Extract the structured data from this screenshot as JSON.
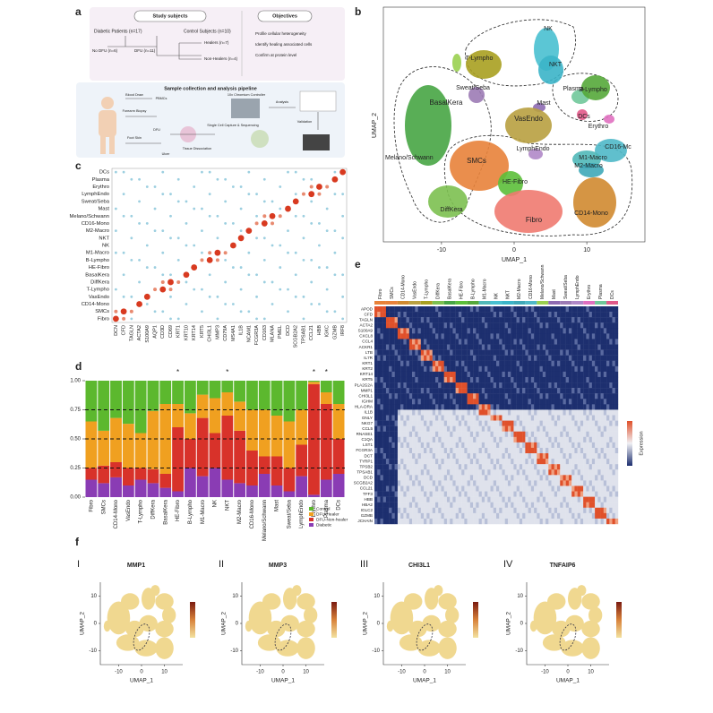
{
  "panel_labels": [
    "a",
    "b",
    "c",
    "d",
    "e",
    "f"
  ],
  "panel_a": {
    "study_subjects": "Study subjects",
    "diabetic": "Diabetic Patients (n=17)",
    "control": "Control Subjects (n=10)",
    "no_dfu": "No DFU (n=6)",
    "dfu": "DFU (n=11)",
    "healers": "Healers (n=7)",
    "non_healers": "Non-Healers (n=4)",
    "objectives": "Objectives",
    "objective_items": [
      "Profile cellular heterogeneity",
      "Identify healing associated cells",
      "Confirm at protein level"
    ],
    "pipeline": "Sample collection and analysis pipeline",
    "pipeline_labels": [
      "Blood Draw",
      "PBMCs",
      "Forearm Biopsy",
      "Foot Skin",
      "Ulcer",
      "DFU",
      "Tissue Dissociation",
      "10x Chromium Controller",
      "Single Cell Capture & Sequencing",
      "Analysis",
      "Validation"
    ]
  },
  "chart_data": [
    {
      "type": "umap",
      "xlabel": "UMAP_1",
      "ylabel": "UMAP_2",
      "xlim": [
        -18,
        18
      ],
      "xticks": [
        -10,
        0,
        10
      ],
      "clusters": [
        "NK",
        "T-Lympho",
        "NKT",
        "Plasma",
        "B-Lympho",
        "Sweat/Seba",
        "BasalKera",
        "Mast",
        "DCs",
        "Erythro",
        "VasEndo",
        "LymphEndo",
        "CD16-Mc",
        "M1-Macro",
        "M2-Macro",
        "Melano/Schwann",
        "SMCs",
        "HE-Fibro",
        "DiffKera",
        "Fibro",
        "CD14-Mono"
      ]
    },
    {
      "type": "dotplot",
      "categories": [
        "DCs",
        "Plasma",
        "Erythro",
        "LymphEndo",
        "Sweat/Seba",
        "Mast",
        "Melano/Schwann",
        "CD16-Mono",
        "M2-Macro",
        "NKT",
        "NK",
        "M1-Macro",
        "B-Lympho",
        "HE-Fibro",
        "BasalKera",
        "DiffKera",
        "T-Lympho",
        "VasEndo",
        "CD14-Mono",
        "SMCs",
        "Fibro"
      ],
      "genes": [
        "DCN",
        "CFD",
        "TAGLN",
        "ACTA2",
        "S100A9",
        "AQP1",
        "CD3D",
        "CD69",
        "KRT1",
        "KRT10",
        "KRT14",
        "KRT5",
        "CHI3L1",
        "MMP3",
        "CD79A",
        "MS4A1",
        "IL1B",
        "NCAM1",
        "FCGR3A",
        "CD163",
        "MLANA",
        "PMEL",
        "DCD",
        "SCGB2A2",
        "TPSAB1",
        "CCL21",
        "HBB",
        "IGKC",
        "GZMB",
        "IRF8"
      ]
    },
    {
      "type": "bar",
      "stacked": true,
      "categories": [
        "Fibro",
        "SMCs",
        "CD14-Mono",
        "VasEndo",
        "T-Lympho",
        "DiffKera",
        "BasalKera",
        "HE-Fibro",
        "B-Lympho",
        "M1-Macro",
        "NK",
        "NKT",
        "M2-Macro",
        "CD16-Mono",
        "Melano/Schwann",
        "Mast",
        "Sweat/Seba",
        "LymphEndo",
        "Erythro",
        "Plasma",
        "DCs"
      ],
      "series": [
        {
          "name": "Control",
          "color": "#5cb82e",
          "values": [
            0.35,
            0.43,
            0.32,
            0.37,
            0.45,
            0.26,
            0.2,
            0.2,
            0.28,
            0.12,
            0.15,
            0.1,
            0.18,
            0.25,
            0.25,
            0.3,
            0.35,
            0.25,
            0.01,
            0.1,
            0.2
          ]
        },
        {
          "name": "DFU-Healer",
          "color": "#f0a020",
          "values": [
            0.4,
            0.3,
            0.38,
            0.38,
            0.3,
            0.5,
            0.6,
            0.2,
            0.22,
            0.2,
            0.3,
            0.2,
            0.25,
            0.35,
            0.4,
            0.35,
            0.4,
            0.3,
            0.02,
            0.1,
            0.3
          ]
        },
        {
          "name": "DFU-Non-healer",
          "color": "#d8322a",
          "values": [
            0.1,
            0.15,
            0.13,
            0.15,
            0.1,
            0.12,
            0.12,
            0.55,
            0.25,
            0.5,
            0.3,
            0.55,
            0.45,
            0.3,
            0.15,
            0.25,
            0.2,
            0.27,
            0.95,
            0.65,
            0.3
          ]
        },
        {
          "name": "Diabetic",
          "color": "#8a3cb4",
          "values": [
            0.15,
            0.12,
            0.17,
            0.1,
            0.15,
            0.12,
            0.08,
            0.05,
            0.25,
            0.18,
            0.25,
            0.15,
            0.12,
            0.1,
            0.2,
            0.1,
            0.05,
            0.18,
            0.02,
            0.15,
            0.2
          ]
        }
      ],
      "ylim": [
        0,
        1
      ],
      "yticks": [
        {
          "value": 0,
          "label": "0.00"
        },
        {
          "value": 0.25,
          "label": "0.25"
        },
        {
          "value": 0.5,
          "label": "0.50"
        },
        {
          "value": 0.75,
          "label": "0.75"
        },
        {
          "value": 1,
          "label": "1.00"
        }
      ],
      "dashed_grid": true,
      "annotations": [
        {
          "text": "*",
          "category": "HE-Fibro"
        },
        {
          "text": "*",
          "category": "NKT"
        },
        {
          "text": "*",
          "category": "Erythro"
        },
        {
          "text": "*",
          "category": "Plasma"
        }
      ]
    },
    {
      "type": "heatmap",
      "clusters": [
        "Fibro",
        "SMCs",
        "CD14-Mono",
        "VasEndo",
        "T-Lympho",
        "DiffKera",
        "BasalKera",
        "HE-Fibro",
        "B-Lympho",
        "M1-Macro",
        "NK",
        "NKT",
        "M2-Macro",
        "CD16-Mono",
        "Melano/Schwann",
        "Mast",
        "Sweat/Seba",
        "LymphEndo",
        "Erythro",
        "Plasma",
        "DCs"
      ],
      "genes": [
        "APOD",
        "CFD",
        "TAGLN",
        "ACTA2",
        "S100A9",
        "CXCL8",
        "CCL4",
        "ACKR1",
        "LTB",
        "IL7R",
        "KRT1",
        "KRT2",
        "KRT14",
        "KRT5",
        "PLA2G2A",
        "MMP1",
        "CHI3L1",
        "IGHM",
        "HLA-DRA",
        "IL1B",
        "GNLY",
        "NKG7",
        "CCL5",
        "RNASE1",
        "C1QA",
        "LST1",
        "FCGR3A",
        "DCT",
        "TYRP1",
        "TPSB2",
        "TPSAB1",
        "DCD",
        "SCGB2A2",
        "CCL21",
        "TFF3",
        "HBB",
        "HBA2",
        "IGLC2",
        "GZMB",
        "JCHAIN"
      ],
      "colorbar_label": "Expression"
    },
    {
      "type": "feature_umap",
      "label": "I",
      "title": "MMP1",
      "xlabel": "UMAP_1",
      "ylabel": "UMAP_2",
      "xlim": [
        -18,
        18
      ],
      "ylim": [
        -15,
        15
      ],
      "xticks": [
        -10,
        0,
        10
      ],
      "yticks": [
        -10,
        0,
        10
      ]
    },
    {
      "type": "feature_umap",
      "label": "II",
      "title": "MMP3",
      "xlabel": "UMAP_1",
      "ylabel": "UMAP_2",
      "xlim": [
        -18,
        18
      ],
      "ylim": [
        -15,
        15
      ],
      "xticks": [
        -10,
        0,
        10
      ],
      "yticks": [
        -10,
        0,
        10
      ]
    },
    {
      "type": "feature_umap",
      "label": "III",
      "title": "CHI3L1",
      "xlabel": "UMAP_1",
      "ylabel": "UMAP_2",
      "xlim": [
        -18,
        18
      ],
      "ylim": [
        -15,
        15
      ],
      "xticks": [
        -10,
        0,
        10
      ],
      "yticks": [
        -10,
        0,
        10
      ]
    },
    {
      "type": "feature_umap",
      "label": "IV",
      "title": "TNFAIP6",
      "xlabel": "UMAP_1",
      "ylabel": "UMAP_2",
      "xlim": [
        -18,
        18
      ],
      "ylim": [
        -15,
        15
      ],
      "xticks": [
        -10,
        0,
        10
      ],
      "yticks": [
        -10,
        0,
        10
      ]
    }
  ]
}
